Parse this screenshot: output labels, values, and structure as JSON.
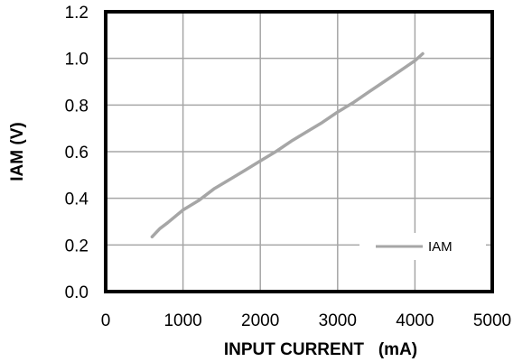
{
  "chart_data": {
    "type": "line",
    "xlabel": "INPUT CURRENT   (mA)",
    "ylabel": "IAM (V)",
    "xlim": [
      0,
      5000
    ],
    "ylim": [
      0,
      1.2
    ],
    "x_ticks": [
      "0",
      "1000",
      "2000",
      "3000",
      "4000",
      "5000"
    ],
    "y_ticks": [
      "0.0",
      "0.2",
      "0.4",
      "0.6",
      "0.8",
      "1.0",
      "1.2"
    ],
    "grid": true,
    "legend_position": "bottom-right",
    "series": [
      {
        "name": "IAM",
        "color": "#a6a6a6",
        "x": [
          600,
          700,
          800,
          1000,
          1200,
          1400,
          1600,
          1800,
          2000,
          2200,
          2400,
          2600,
          2800,
          3000,
          3200,
          3400,
          3600,
          3800,
          4000,
          4100
        ],
        "y": [
          0.235,
          0.27,
          0.295,
          0.35,
          0.39,
          0.44,
          0.48,
          0.52,
          0.56,
          0.6,
          0.645,
          0.685,
          0.725,
          0.77,
          0.81,
          0.855,
          0.9,
          0.945,
          0.99,
          1.02
        ]
      }
    ]
  }
}
